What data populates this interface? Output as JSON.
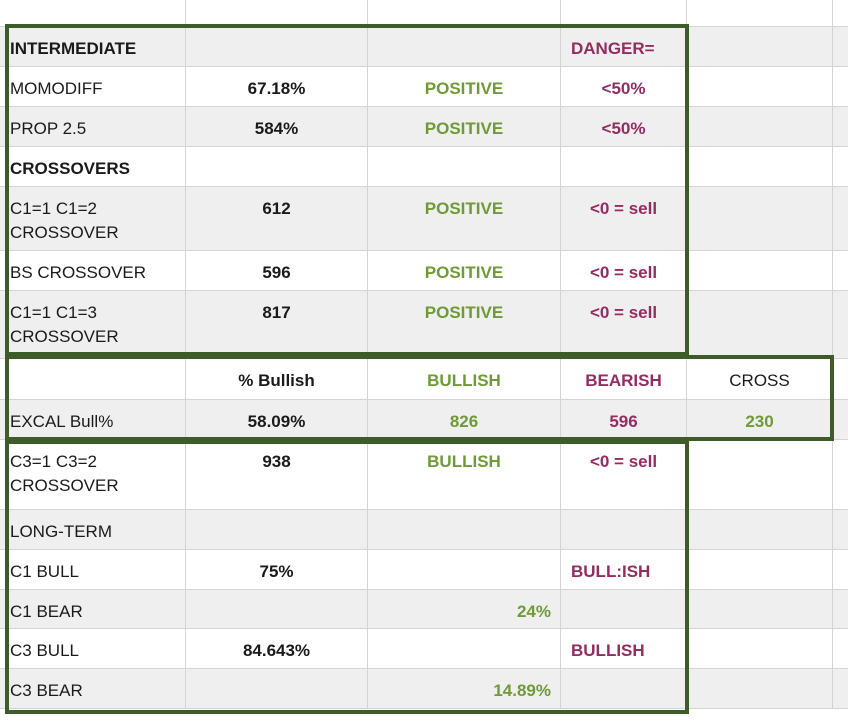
{
  "colors": {
    "positive": "#6e9b33",
    "danger": "#952c61",
    "frame": "#3e5b2a",
    "shaded_row": "#efefef"
  },
  "rows": [
    {
      "label": "INTERMEDIATE",
      "value": "",
      "status": "",
      "threshold": "DANGER=",
      "extra": ""
    },
    {
      "label": "MOMODIFF",
      "value": "67.18%",
      "status": "POSITIVE",
      "threshold": "<50%",
      "extra": ""
    },
    {
      "label": "PROP 2.5",
      "value": "584%",
      "status": "POSITIVE",
      "threshold": "<50%",
      "extra": ""
    },
    {
      "label": "CROSSOVERS",
      "value": "",
      "status": "",
      "threshold": "",
      "extra": ""
    },
    {
      "label": "C1=1 C1=2\nCROSSOVER",
      "value": "612",
      "status": "POSITIVE",
      "threshold": "<0 = sell",
      "extra": ""
    },
    {
      "label": "BS CROSSOVER",
      "value": "596",
      "status": "POSITIVE",
      "threshold": "<0 = sell",
      "extra": ""
    },
    {
      "label": "C1=1 C1=3\nCROSSOVER",
      "value": "817",
      "status": "POSITIVE",
      "threshold": "<0 = sell",
      "extra": ""
    },
    {
      "label": "",
      "value": "% Bullish",
      "status": "BULLISH",
      "threshold": "BEARISH",
      "extra": "CROSS"
    },
    {
      "label": "EXCAL Bull%",
      "value": "58.09%",
      "status": "826",
      "threshold": "596",
      "extra": "230"
    },
    {
      "label": "C3=1 C3=2\nCROSSOVER",
      "value": "938",
      "status": "BULLISH",
      "threshold": "<0 = sell",
      "extra": ""
    },
    {
      "label": "LONG-TERM",
      "value": "",
      "status": "",
      "threshold": "",
      "extra": ""
    },
    {
      "label": "C1 BULL",
      "value": "75%",
      "status": "",
      "threshold": "BULL:ISH",
      "extra": ""
    },
    {
      "label": "C1 BEAR",
      "value": "",
      "status": "24%",
      "threshold": "",
      "extra": ""
    },
    {
      "label": "C3 BULL",
      "value": "84.643%",
      "status": "",
      "threshold": "BULLISH",
      "extra": ""
    },
    {
      "label": "C3 BEAR",
      "value": "",
      "status": "14.89%",
      "threshold": "",
      "extra": ""
    }
  ]
}
